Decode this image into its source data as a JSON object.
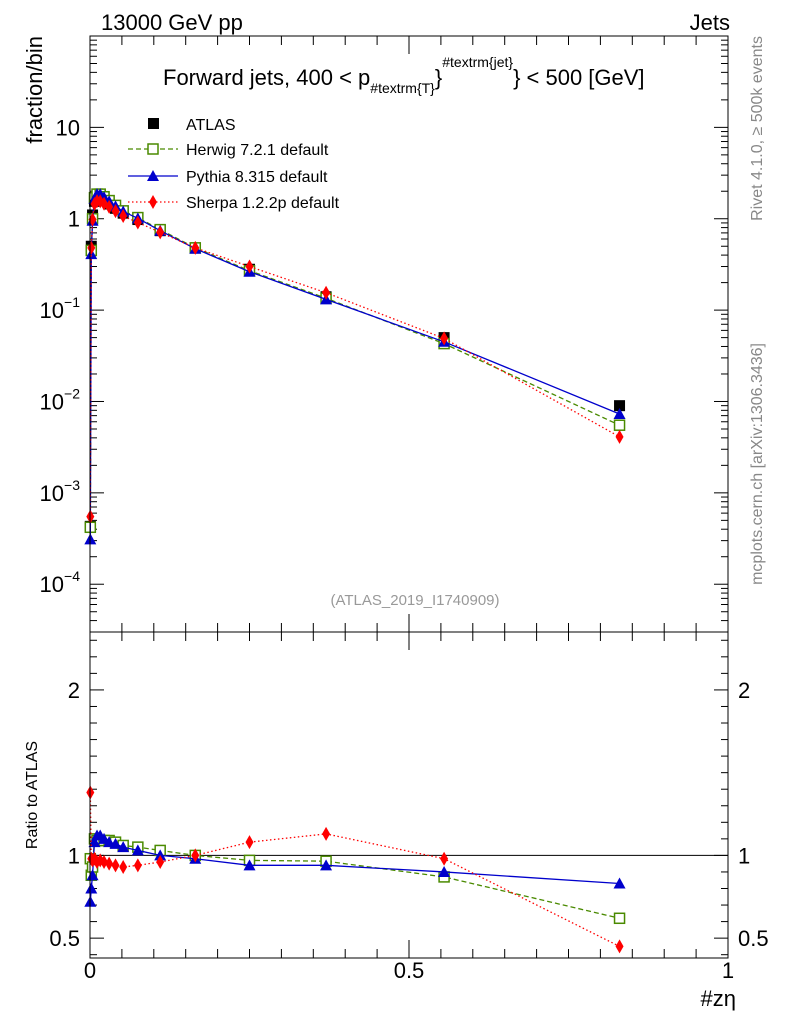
{
  "header": {
    "left": "13000 GeV pp",
    "right": "Jets"
  },
  "side_labels": {
    "rivet": "Rivet 4.1.0, ≥ 500k events",
    "mcplots": "mcplots.cern.ch [arXiv:1306.3436]"
  },
  "chart_data": [
    {
      "type": "line",
      "panel": "main",
      "yscale": "log",
      "title": "Forward jets, 400 < p",
      "title_sub": "#textrm{T}",
      "title_sup": "#textrm{jet}",
      "title_tail": "} < 500 [GeV]",
      "ylabel": "fraction/bin",
      "xlabel": "",
      "analysis_tag": "(ATLAS_2019_I1740909)",
      "xlim": [
        0,
        1
      ],
      "ylim": [
        3e-05,
        100
      ],
      "yticks": [
        {
          "value": 0.0001,
          "mant": "10",
          "exp": "−4"
        },
        {
          "value": 0.001,
          "mant": "10",
          "exp": "−3"
        },
        {
          "value": 0.01,
          "mant": "10",
          "exp": "−2"
        },
        {
          "value": 0.1,
          "mant": "10",
          "exp": "−1"
        },
        {
          "value": 1,
          "mant": "1",
          "exp": ""
        },
        {
          "value": 10,
          "mant": "10",
          "exp": ""
        }
      ],
      "x": [
        0.0005,
        0.002,
        0.004,
        0.007,
        0.011,
        0.016,
        0.022,
        0.03,
        0.04,
        0.052,
        0.075,
        0.11,
        0.165,
        0.25,
        0.37,
        0.555,
        0.83
      ],
      "series": [
        {
          "name": "ATLAS",
          "color": "#000000",
          "marker": "square",
          "line": "none",
          "values": [
            0.00043,
            0.5,
            1.1,
            1.55,
            1.72,
            1.72,
            1.6,
            1.45,
            1.3,
            1.15,
            0.98,
            0.74,
            0.48,
            0.28,
            0.14,
            0.05,
            0.009
          ]
        },
        {
          "name": "Herwig 7.2.1 default",
          "color": "#4a8a00",
          "marker": "open-square",
          "line": "dashed",
          "values": [
            0.00042,
            0.45,
            1.0,
            1.7,
            1.86,
            1.86,
            1.74,
            1.58,
            1.4,
            1.22,
            1.03,
            0.76,
            0.48,
            0.27,
            0.135,
            0.043,
            0.0055
          ]
        },
        {
          "name": "Pythia 8.315 default",
          "color": "#0000cc",
          "marker": "triangle",
          "line": "solid",
          "values": [
            0.00031,
            0.41,
            0.95,
            1.65,
            1.86,
            1.86,
            1.72,
            1.55,
            1.37,
            1.2,
            1.01,
            0.74,
            0.47,
            0.263,
            0.131,
            0.045,
            0.0073
          ]
        },
        {
          "name": "Sherpa 1.2.2p default",
          "color": "#ff0000",
          "marker": "diamond",
          "line": "dotted",
          "values": [
            0.00055,
            0.48,
            0.98,
            1.45,
            1.56,
            1.55,
            1.46,
            1.35,
            1.21,
            1.07,
            0.91,
            0.71,
            0.48,
            0.3,
            0.155,
            0.049,
            0.0041
          ]
        }
      ]
    },
    {
      "type": "line",
      "panel": "ratio",
      "yscale": "linear",
      "title": "",
      "ylabel": "Ratio to ATLAS",
      "xlabel": "#zη",
      "xlim": [
        0,
        1
      ],
      "ylim": [
        0.38,
        2.35
      ],
      "yticks": [
        0.5,
        1,
        2
      ],
      "ytick_labels": [
        "0.5",
        "1",
        "2"
      ],
      "xticks": [
        0,
        0.5,
        1
      ],
      "xtick_labels": [
        "0",
        "0.5",
        "1"
      ],
      "reference": 1,
      "x": [
        0.0005,
        0.002,
        0.004,
        0.007,
        0.011,
        0.016,
        0.022,
        0.03,
        0.04,
        0.052,
        0.075,
        0.11,
        0.165,
        0.25,
        0.37,
        0.555,
        0.83
      ],
      "series": [
        {
          "name": "Herwig 7.2.1 default",
          "color": "#4a8a00",
          "marker": "open-square",
          "line": "dashed",
          "values": [
            0.98,
            0.88,
            0.93,
            1.1,
            1.09,
            1.09,
            1.09,
            1.09,
            1.08,
            1.06,
            1.05,
            1.03,
            1.0,
            0.97,
            0.965,
            0.87,
            0.62
          ]
        },
        {
          "name": "Pythia 8.315 default",
          "color": "#0000cc",
          "marker": "triangle",
          "line": "solid",
          "values": [
            0.72,
            0.8,
            0.88,
            1.08,
            1.12,
            1.12,
            1.1,
            1.08,
            1.07,
            1.05,
            1.03,
            1.0,
            0.98,
            0.94,
            0.94,
            0.9,
            0.83
          ]
        },
        {
          "name": "Sherpa 1.2.2p default",
          "color": "#ff0000",
          "marker": "diamond",
          "line": "dotted",
          "values": [
            1.38,
            0.98,
            0.97,
            0.98,
            0.96,
            0.97,
            0.96,
            0.95,
            0.94,
            0.93,
            0.94,
            0.96,
            1.0,
            1.08,
            1.13,
            0.98,
            0.45
          ]
        }
      ]
    }
  ]
}
